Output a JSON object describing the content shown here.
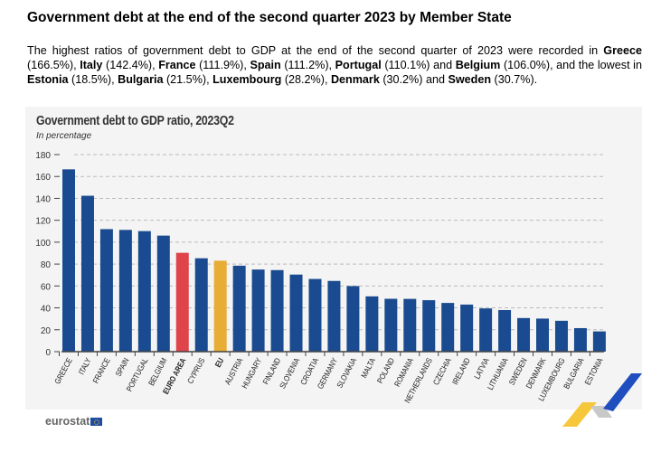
{
  "title": "Government debt at the end of the second quarter 2023 by Member State",
  "paragraph": [
    {
      "t": "The highest ratios of government debt to GDP at the end of the second quarter of 2023 were recorded in ",
      "b": false
    },
    {
      "t": "Greece",
      "b": true
    },
    {
      "t": " (166.5%), ",
      "b": false
    },
    {
      "t": "Italy",
      "b": true
    },
    {
      "t": " (142.4%), ",
      "b": false
    },
    {
      "t": "France",
      "b": true
    },
    {
      "t": " (111.9%), ",
      "b": false
    },
    {
      "t": "Spain",
      "b": true
    },
    {
      "t": " (111.2%), ",
      "b": false
    },
    {
      "t": "Portugal",
      "b": true
    },
    {
      "t": " (110.1%) and ",
      "b": false
    },
    {
      "t": "Belgium",
      "b": true
    },
    {
      "t": " (106.0%), and the lowest in ",
      "b": false
    },
    {
      "t": "Estonia",
      "b": true
    },
    {
      "t": " (18.5%), ",
      "b": false
    },
    {
      "t": "Bulgaria",
      "b": true
    },
    {
      "t": " (21.5%), ",
      "b": false
    },
    {
      "t": "Luxembourg",
      "b": true
    },
    {
      "t": " (28.2%), ",
      "b": false
    },
    {
      "t": "Denmark",
      "b": true
    },
    {
      "t": " (30.2%) and ",
      "b": false
    },
    {
      "t": "Sweden",
      "b": true
    },
    {
      "t": " (30.7%).",
      "b": false
    }
  ],
  "logo_text": "eurostat",
  "chart_data": {
    "type": "bar",
    "title": "Government debt to GDP ratio, 2023Q2",
    "subtitle": "In percentage",
    "ylim": [
      0,
      180
    ],
    "yticks": [
      0,
      20,
      40,
      60,
      80,
      100,
      120,
      140,
      160,
      180
    ],
    "grid": true,
    "categories": [
      "GREECE",
      "ITALY",
      "FRANCE",
      "SPAIN",
      "PORTUGAL",
      "BELGIUM",
      "EURO AREA",
      "CYPRUS",
      "EU",
      "AUSTRIA",
      "HUNGARY",
      "FINLAND",
      "SLOVENIA",
      "CROATIA",
      "GERMANY",
      "SLOVAKIA",
      "MALTA",
      "POLAND",
      "ROMANIA",
      "NETHERLANDS",
      "CZECHIA",
      "IRELAND",
      "LATVIA",
      "LITHUANIA",
      "SWEDEN",
      "DENMARK",
      "LUXEMBOURG",
      "BULGARIA",
      "ESTONIA"
    ],
    "values": [
      166.5,
      142.4,
      111.9,
      111.2,
      110.1,
      106.0,
      90.3,
      85.3,
      83.1,
      78.5,
      75.0,
      74.5,
      70.4,
      66.4,
      64.6,
      59.9,
      50.5,
      48.3,
      48.2,
      47.0,
      44.5,
      43.0,
      39.5,
      38.0,
      30.7,
      30.2,
      28.2,
      21.5,
      18.5
    ],
    "colors": {
      "default": "#1a4a8f",
      "EURO AREA": "#e0444b",
      "EU": "#e8ad35"
    },
    "bold_categories": [
      "EURO AREA",
      "EU"
    ]
  }
}
